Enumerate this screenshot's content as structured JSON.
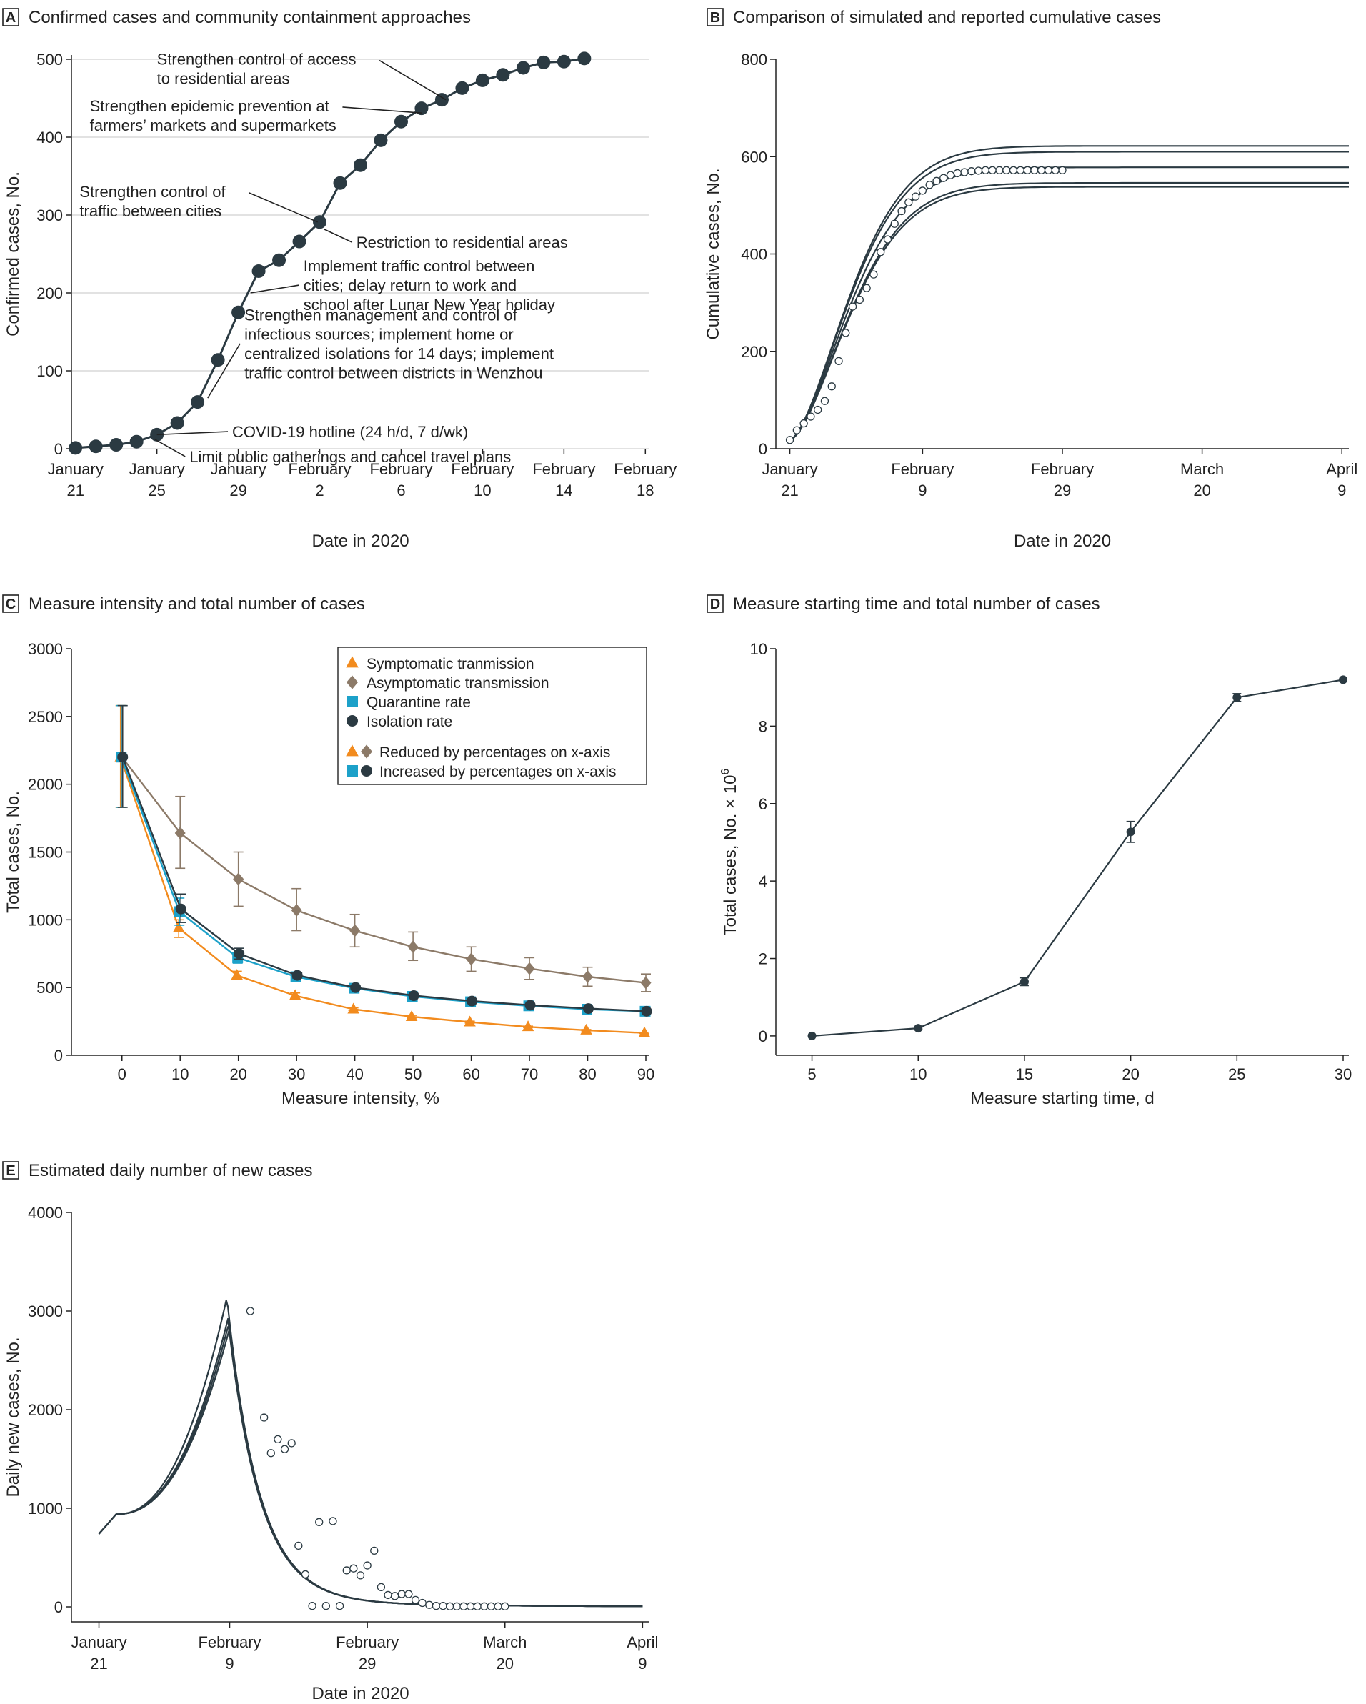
{
  "colors": {
    "dark": "#2b3a42",
    "symptomatic": "#f28b1e",
    "asymptomatic": "#8c7a68",
    "quarantine": "#1ca1c9",
    "isolation": "#2b3a42",
    "grid": "#d0d0d0"
  },
  "chart_data": [
    {
      "id": "A",
      "type": "line",
      "letter": "A",
      "title": "Confirmed cases and community containment approaches",
      "xlabel": "Date in 2020",
      "ylabel": "Confirmed cases, No.",
      "xlim": [
        -0.2,
        28.2
      ],
      "ylim": [
        0,
        500
      ],
      "yticks": [
        0,
        100,
        200,
        300,
        400,
        500
      ],
      "grid": true,
      "xticks": [
        {
          "x": 0,
          "lines": [
            "January",
            "21"
          ]
        },
        {
          "x": 4,
          "lines": [
            "January",
            "25"
          ]
        },
        {
          "x": 8,
          "lines": [
            "January",
            "29"
          ]
        },
        {
          "x": 12,
          "lines": [
            "February",
            "2"
          ]
        },
        {
          "x": 16,
          "lines": [
            "February",
            "6"
          ]
        },
        {
          "x": 20,
          "lines": [
            "February",
            "10"
          ]
        },
        {
          "x": 24,
          "lines": [
            "February",
            "14"
          ]
        },
        {
          "x": 28,
          "lines": [
            "February",
            "18"
          ]
        }
      ],
      "series": [
        {
          "x": [
            0,
            1,
            2,
            3,
            4,
            5,
            6,
            7,
            8,
            9,
            10,
            11,
            12,
            13,
            14,
            15,
            16,
            17,
            18,
            19,
            20,
            21,
            22,
            23,
            24,
            25
          ],
          "values": [
            1,
            3,
            5,
            9,
            18,
            33,
            60,
            114,
            175,
            228,
            242,
            266,
            291,
            341,
            364,
            396,
            420,
            437,
            448,
            463,
            473,
            480,
            489,
            496,
            497,
            501
          ]
        }
      ],
      "annotations": [
        {
          "lines": [
            "Limit public gatherings and cancel travel plans"
          ],
          "point": [
            3.9,
            12
          ],
          "text_x": 5.6,
          "text_y": -10,
          "anchor": "start"
        },
        {
          "lines": [
            "COVID-19 hotline (24 h/d, 7 d/wk)"
          ],
          "point": [
            4,
            18
          ],
          "text_x": 7.7,
          "text_y": 22,
          "anchor": "start"
        },
        {
          "lines": [
            "Strengthen management and control of",
            "infectious sources; implement home or",
            "centralized isolations for 14 days; implement",
            "traffic control between districts in Wenzhou"
          ],
          "point": [
            6.5,
            65
          ],
          "text_x": 8.3,
          "text_y": 135,
          "anchor": "start"
        },
        {
          "lines": [
            "Implement traffic control between",
            "cities; delay return to work and",
            "school after Lunar New Year holiday"
          ],
          "point": [
            8.6,
            200
          ],
          "text_x": 11.2,
          "text_y": 210,
          "anchor": "start"
        },
        {
          "lines": [
            "Restriction to residential areas"
          ],
          "point": [
            12.2,
            282
          ],
          "text_x": 13.8,
          "text_y": 265,
          "anchor": "start"
        },
        {
          "lines": [
            "Strengthen control of",
            "traffic between cities"
          ],
          "point": [
            11.9,
            291
          ],
          "text_x": 0.2,
          "text_y": 318,
          "anchor": "start"
        },
        {
          "lines": [
            "Strengthen epidemic prevention at",
            "farmers’ markets and supermarkets"
          ],
          "point": [
            17.0,
            431
          ],
          "text_x": 0.7,
          "text_y": 428,
          "anchor": "start"
        },
        {
          "lines": [
            "Strengthen control of  access",
            "to residential areas"
          ],
          "point": [
            18.2,
            448
          ],
          "text_x": 4.0,
          "text_y": 488,
          "anchor": "start"
        }
      ]
    },
    {
      "id": "B",
      "type": "line",
      "letter": "B",
      "title": "Comparison of simulated and reported cumulative cases",
      "xlabel": "Date in 2020",
      "ylabel": "Cumulative cases, No.",
      "xlim": [
        -2,
        80
      ],
      "ylim": [
        0,
        800
      ],
      "yticks": [
        0,
        200,
        400,
        600,
        800
      ],
      "grid": false,
      "xticks": [
        {
          "x": 0,
          "lines": [
            "January",
            "21"
          ]
        },
        {
          "x": 19,
          "lines": [
            "February",
            "9"
          ]
        },
        {
          "x": 39,
          "lines": [
            "February",
            "29"
          ]
        },
        {
          "x": 59,
          "lines": [
            "March",
            "20"
          ]
        },
        {
          "x": 79,
          "lines": [
            "April",
            "9"
          ]
        }
      ],
      "plateaus": [
        622,
        610,
        578,
        546,
        538
      ],
      "observed": {
        "x": [
          0,
          1,
          2,
          3,
          4,
          5,
          6,
          7,
          8,
          9,
          10,
          11,
          12,
          13,
          14,
          15,
          16,
          17,
          18,
          19,
          20,
          21,
          22,
          23,
          24,
          25,
          26,
          27,
          28,
          29,
          30,
          31,
          32,
          33,
          34,
          35,
          36,
          37,
          38,
          39
        ],
        "values": [
          18,
          38,
          52,
          66,
          80,
          98,
          128,
          180,
          238,
          292,
          306,
          330,
          358,
          404,
          430,
          462,
          488,
          506,
          518,
          530,
          542,
          550,
          556,
          562,
          566,
          568,
          570,
          571,
          572,
          572,
          572,
          572,
          572,
          572,
          572,
          572,
          572,
          572,
          572,
          572
        ]
      }
    },
    {
      "id": "C",
      "type": "line",
      "letter": "C",
      "title": "Measure intensity and total number of cases",
      "xlabel": "Measure intensity, %",
      "ylabel": "Total cases, No.",
      "xlim": [
        -5,
        90
      ],
      "ylim": [
        0,
        3000
      ],
      "yticks": [
        0,
        500,
        1000,
        1500,
        2000,
        2500,
        3000
      ],
      "xticks": [
        0,
        10,
        20,
        30,
        40,
        50,
        60,
        70,
        80,
        90
      ],
      "grid": false,
      "x": [
        0,
        10,
        20,
        30,
        40,
        50,
        60,
        70,
        80,
        90
      ],
      "series": [
        {
          "name": "Symptomatic tranmission",
          "key": "symptomatic",
          "marker": "triangle",
          "dx": -1.0,
          "values": [
            2200,
            940,
            590,
            440,
            340,
            285,
            245,
            210,
            185,
            165
          ],
          "err_lo": [
            1830,
            870,
            560,
            420,
            330,
            275,
            238,
            205,
            180,
            160
          ],
          "err_hi": [
            2580,
            1000,
            620,
            460,
            350,
            295,
            252,
            215,
            190,
            170
          ]
        },
        {
          "name": "Asymptomatic transmission",
          "key": "asymptomatic",
          "marker": "diamond",
          "dx": 0,
          "values": [
            2200,
            1640,
            1300,
            1070,
            920,
            800,
            710,
            640,
            580,
            535
          ],
          "err_lo": [
            1830,
            1380,
            1100,
            920,
            800,
            700,
            620,
            560,
            510,
            470
          ],
          "err_hi": [
            2580,
            1910,
            1500,
            1230,
            1040,
            910,
            800,
            720,
            650,
            600
          ]
        },
        {
          "name": "Quarantine rate",
          "key": "quarantine",
          "marker": "square",
          "dx": -0.5,
          "values": [
            2200,
            1060,
            720,
            580,
            495,
            435,
            395,
            365,
            340,
            325
          ],
          "err_lo": [
            1830,
            960,
            680,
            560,
            480,
            425,
            388,
            358,
            335,
            320
          ],
          "err_hi": [
            2580,
            1160,
            760,
            600,
            510,
            445,
            402,
            372,
            345,
            330
          ]
        },
        {
          "name": "Isolation rate",
          "key": "isolation",
          "marker": "circle",
          "dx": 0.5,
          "values": [
            2200,
            1080,
            750,
            590,
            500,
            440,
            400,
            370,
            345,
            325
          ],
          "err_lo": [
            1830,
            980,
            710,
            570,
            485,
            430,
            392,
            362,
            338,
            320
          ],
          "err_hi": [
            2580,
            1190,
            790,
            610,
            515,
            450,
            408,
            378,
            352,
            330
          ]
        }
      ],
      "legend": {
        "placement": "top-right",
        "group_labels": [
          "Reduced by percentages on x-axis",
          "Increased by percentages on x-axis"
        ]
      }
    },
    {
      "id": "D",
      "type": "line",
      "letter": "D",
      "title": "Measure starting time and total number of cases",
      "xlabel": "Measure starting time, d",
      "ylabel_prefix": "Total cases, No. × 10",
      "ylabel_exp": "6",
      "xlim": [
        3.3,
        30
      ],
      "ylim": [
        -0.5,
        10
      ],
      "yticks": [
        0,
        2,
        4,
        6,
        8,
        10
      ],
      "xticks": [
        5,
        10,
        15,
        20,
        25,
        30
      ],
      "grid": false,
      "series": [
        {
          "x": [
            5,
            10,
            15,
            20,
            25,
            30
          ],
          "values": [
            0.0,
            0.2,
            1.4,
            5.27,
            8.74,
            9.2
          ],
          "err": [
            0.0,
            0.03,
            0.1,
            0.27,
            0.1,
            0.0
          ]
        }
      ]
    },
    {
      "id": "E",
      "type": "line",
      "letter": "E",
      "title": "Estimated daily number of new cases",
      "xlabel": "Date in 2020",
      "ylabel": "Daily new cases, No.",
      "xlim": [
        -4,
        80
      ],
      "ylim": [
        0,
        4000
      ],
      "yticks": [
        0,
        1000,
        2000,
        3000,
        4000
      ],
      "grid": false,
      "xticks": [
        {
          "x": 0,
          "lines": [
            "January",
            "21"
          ]
        },
        {
          "x": 19,
          "lines": [
            "February",
            "9"
          ]
        },
        {
          "x": 39,
          "lines": [
            "February",
            "29"
          ]
        },
        {
          "x": 59,
          "lines": [
            "March",
            "20"
          ]
        },
        {
          "x": 79,
          "lines": [
            "April",
            "9"
          ]
        }
      ],
      "curve_peaks": [
        3140,
        2920,
        2880,
        2840
      ],
      "observed": {
        "x": [
          22,
          24,
          25,
          26,
          27,
          28,
          29,
          30,
          31,
          32,
          33,
          34,
          35,
          36,
          37,
          38,
          39,
          40,
          41,
          42,
          43,
          44,
          45,
          46,
          47,
          48,
          49,
          50,
          51,
          52,
          53,
          54,
          55,
          56,
          57,
          58,
          59
        ],
        "values": [
          3000,
          1920,
          1560,
          1700,
          1600,
          1660,
          620,
          330,
          10,
          860,
          10,
          870,
          10,
          370,
          390,
          320,
          420,
          570,
          200,
          120,
          110,
          130,
          130,
          70,
          40,
          20,
          10,
          10,
          5,
          5,
          5,
          5,
          5,
          5,
          5,
          5,
          5
        ]
      }
    }
  ]
}
